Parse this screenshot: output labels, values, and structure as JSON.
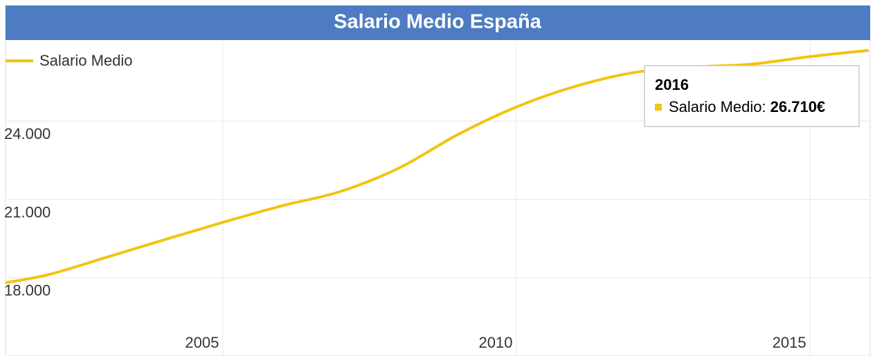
{
  "chart_data": {
    "type": "line",
    "title": "Salario Medio España",
    "x": [
      2001,
      2002,
      2003,
      2004,
      2005,
      2006,
      2007,
      2008,
      2009,
      2010,
      2011,
      2012,
      2013,
      2014,
      2015,
      2016
    ],
    "series": [
      {
        "name": "Salario Medio",
        "color": "#f1c40f",
        "values": [
          17700,
          18100,
          18770,
          19450,
          20120,
          20750,
          21300,
          22200,
          23480,
          24540,
          25330,
          25860,
          26070,
          26180,
          26470,
          26710
        ]
      }
    ],
    "xlim": [
      2001.3,
      2016
    ],
    "xticks": [
      2005,
      2010,
      2015
    ],
    "ylim": [
      15000,
      27050
    ],
    "yticks": [
      {
        "value": 18000,
        "label": "18.000"
      },
      {
        "value": 21000,
        "label": "21.000"
      },
      {
        "value": 24000,
        "label": "24.000"
      }
    ],
    "grid": true,
    "legend": "top-left",
    "tooltip": {
      "title": "2016",
      "label": "Salario Medio:",
      "value": "26.710€"
    }
  }
}
